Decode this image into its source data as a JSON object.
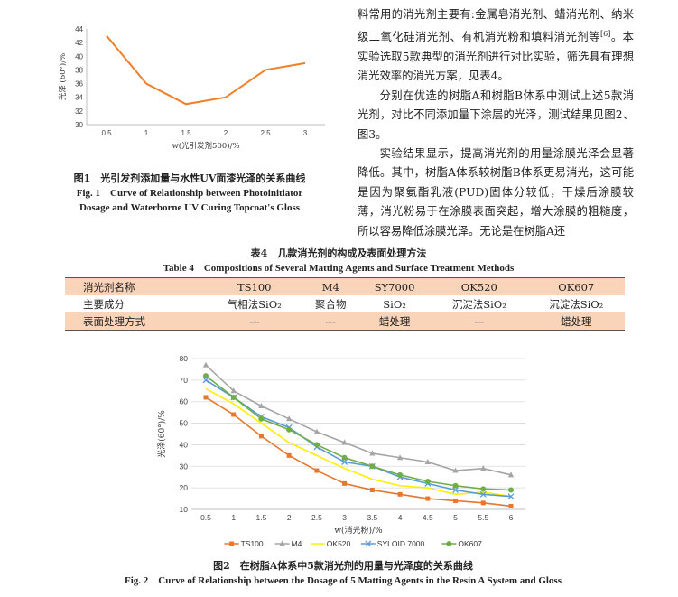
{
  "fig1": {
    "caption_cn": "图1　光引发剂添加量与水性UV面漆光泽的关系曲线",
    "caption_en_1": "Fig. 1　Curve of Relationship between Photoinitiator",
    "caption_en_2": "Dosage and Waterborne UV Curing Topcoat's Gloss"
  },
  "text": {
    "p1_a": "料常用的消光剂主要有:金属皂消光剂、蜡消光剂、纳米级二氧化硅消光剂、有机消光粉和填料消光剂等",
    "p1_ref": "[6]",
    "p1_b": "。本实验选取5款典型的消光剂进行对比实验，筛选具有理想消光效率的消光方案，见表4。",
    "p2": "分别在优选的树脂A和树脂B体系中测试上述5款消光剂，对比不同添加量下涂层的光泽，测试结果见图2、图3。",
    "p3": "实验结果显示，提高消光剂的用量涂膜光泽会显著降低。其中，树脂A体系较树脂B体系更易消光，这可能是因为聚氨酯乳液(PUD)固体分较低，干燥后涂膜较薄，消光粉易于在涂膜表面突起，增大涂膜的粗糙度，所以容易降低涂膜光泽。无论是在树脂A还"
  },
  "table": {
    "caption_cn": "表4　几款消光剂的构成及表面处理方法",
    "caption_en": "Table 4　Compositions of Several Matting Agents and Surface Treatment Methods",
    "rows": [
      [
        "消光剂名称",
        "TS100",
        "M4",
        "SY7000",
        "OK520",
        "OK607"
      ],
      [
        "主要成分",
        "气相法SiO₂",
        "聚合物",
        "SiO₂",
        "沉淀法SiO₂",
        "沉淀法SiO₂"
      ],
      [
        "表面处理方式",
        "—",
        "—",
        "蜡处理",
        "—",
        "蜡处理"
      ]
    ]
  },
  "fig2": {
    "caption_cn": "图2　在树脂A体系中5款消光剂的用量与光泽度的关系曲线",
    "caption_en": "Fig. 2　Curve of Relationship between the Dosage of 5 Matting Agents in the Resin A System and Gloss"
  },
  "chart_data": [
    {
      "type": "line",
      "title": "",
      "xlabel": "w(光引发剂500)/%",
      "ylabel": "光泽 (60°)/%",
      "x": [
        0.5,
        1,
        1.5,
        2,
        2.5,
        3
      ],
      "xticks": [
        "0.5",
        "1",
        "1.5",
        "2",
        "2.5",
        "3"
      ],
      "ylim": [
        30,
        44
      ],
      "yticks": [
        30,
        32,
        34,
        36,
        38,
        40,
        42,
        44
      ],
      "grid": false,
      "series": [
        {
          "name": "",
          "values": [
            43,
            36,
            33,
            34,
            38,
            39
          ],
          "color": "#f07f2a"
        }
      ]
    },
    {
      "type": "line",
      "title": "",
      "xlabel": "w(消光粉)/%",
      "ylabel": "光泽(60°)/%",
      "x": [
        0.5,
        1,
        1.5,
        2,
        2.5,
        3,
        3.5,
        4,
        4.5,
        5,
        5.5,
        6
      ],
      "xticks": [
        "0.5",
        "1",
        "1.5",
        "2",
        "2.5",
        "3",
        "3.5",
        "4",
        "4.5",
        "5",
        "5.5",
        "6"
      ],
      "ylim": [
        10,
        80
      ],
      "yticks": [
        10,
        20,
        30,
        40,
        50,
        60,
        70,
        80
      ],
      "grid": true,
      "legend": "bottom",
      "series": [
        {
          "name": "TS100",
          "values": [
            62,
            54,
            44,
            35,
            28,
            22,
            19,
            17,
            15,
            14,
            13,
            11.5
          ],
          "color": "#e8762b",
          "marker": "square"
        },
        {
          "name": "M4",
          "values": [
            77,
            65,
            58,
            52,
            46,
            41,
            36,
            34,
            32,
            28,
            29,
            26
          ],
          "color": "#a5a5a5",
          "marker": "triangle"
        },
        {
          "name": "OK520",
          "values": [
            66,
            59,
            50,
            41,
            35,
            29,
            24,
            21,
            20,
            17,
            18,
            16
          ],
          "color": "#ffee00",
          "marker": "none"
        },
        {
          "name": "SYLOID 7000",
          "values": [
            70,
            62,
            53,
            48,
            39,
            32,
            30,
            25,
            22,
            19,
            17,
            16
          ],
          "color": "#5b9bd5",
          "marker": "cross"
        },
        {
          "name": "OK607",
          "values": [
            72,
            62,
            52,
            47,
            40,
            34,
            30,
            26,
            23,
            21,
            19.5,
            19
          ],
          "color": "#70ad47",
          "marker": "circle"
        }
      ]
    }
  ]
}
